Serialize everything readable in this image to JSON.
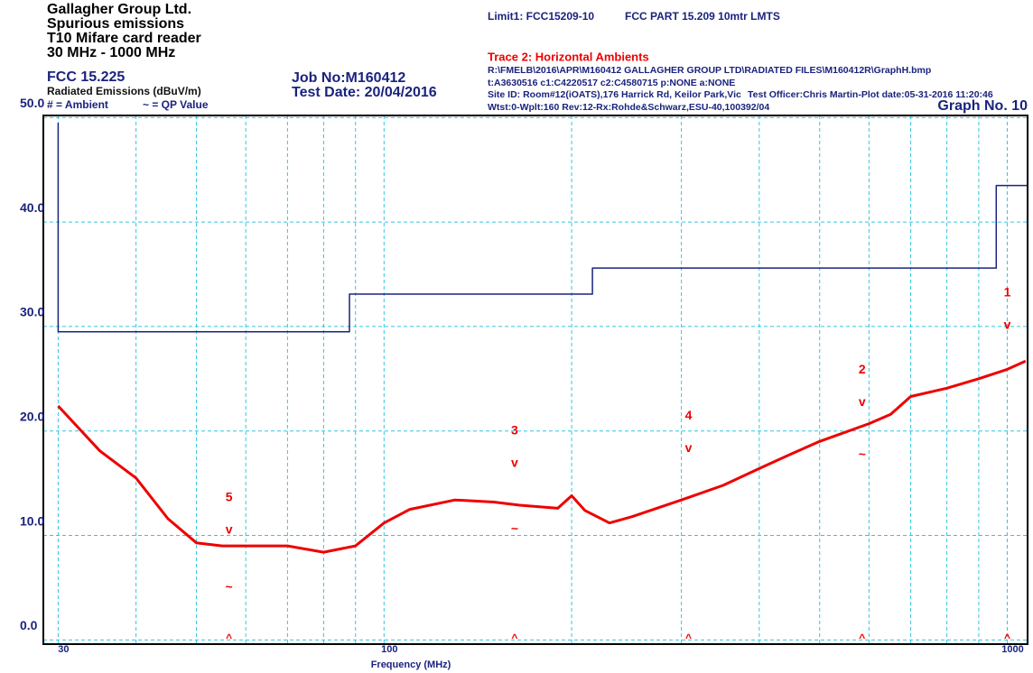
{
  "header": {
    "company": "Gallagher Group Ltd.",
    "test": "Spurious emissions",
    "product": "T10 Mifare card reader",
    "range": "30 MHz - 1000 MHz",
    "standard": "FCC 15.225",
    "ambient_key": "# = Ambient",
    "qp_key": "~ = QP Value",
    "job": "Job No:M160412",
    "date": "Test Date: 20/04/2016",
    "limit_desc": "FCC PART 15.209 10mtr LMTS",
    "file": "R:\\FMELB\\2016\\APR\\M160412 GALLAGHER GROUP LTD\\RADIATED FILES\\M160412R\\GraphH.bmp",
    "cal": "t:A3630516 c1:C4220517  c2:C4580715 p:NONE a:NONE",
    "site": "Site ID: Room#12(iOATS),176 Harrick Rd, Keilor Park,Vic",
    "officer": "Test Officer:Chris Martin-Plot date:05-31-2016 11:20:46",
    "setup": "Wtst:0-Wplt:160 Rev:12-Rx:Rohde&Schwarz,ESU-40,100392/04",
    "graph": "Graph No.  10"
  },
  "chart_data": {
    "type": "line",
    "xlabel": "Frequency (MHz)",
    "ylabel": "Radiated Emissions (dBuV/m)",
    "log_x": true,
    "xlim": [
      28.4,
      1078
    ],
    "ylim": [
      -0.4,
      50.2
    ],
    "xticks": [
      30,
      100,
      1000
    ],
    "xgrid": [
      30,
      40,
      50,
      60,
      70,
      80,
      90,
      100,
      200,
      300,
      400,
      500,
      600,
      700,
      800,
      900,
      1000
    ],
    "yticks": [
      {
        "value": 0,
        "label": "0.0"
      },
      {
        "value": 10,
        "label": "10.0"
      },
      {
        "value": 20,
        "label": "20.0"
      },
      {
        "value": 30,
        "label": "30.0"
      },
      {
        "value": 40,
        "label": "40.0"
      },
      {
        "value": 50,
        "label": "50.0"
      }
    ],
    "grid": true,
    "series": [
      {
        "name": "Limit1: FCC15209-10",
        "color": "#1a237e",
        "x": [
          30,
          30,
          88,
          88,
          216,
          216,
          960,
          960,
          1078
        ],
        "values": [
          49.5,
          29.5,
          29.5,
          33.1,
          33.1,
          35.6,
          35.6,
          43.5,
          43.5
        ]
      },
      {
        "name": "Trace 2: Horizontal Ambients",
        "color": "#ee0000",
        "x": [
          30,
          35,
          40,
          45,
          50,
          55,
          60,
          70,
          80,
          90,
          100,
          110,
          130,
          150,
          165,
          190,
          200,
          210,
          230,
          250,
          300,
          350,
          400,
          450,
          500,
          600,
          650,
          700,
          800,
          900,
          1000,
          1070
        ],
        "values": [
          22.4,
          18.1,
          15.5,
          11.6,
          9.3,
          9.0,
          9.0,
          9.0,
          8.4,
          9.0,
          11.2,
          12.5,
          13.4,
          13.2,
          12.9,
          12.6,
          13.8,
          12.4,
          11.2,
          11.8,
          13.4,
          14.8,
          16.4,
          17.8,
          19.0,
          20.7,
          21.6,
          23.3,
          24.1,
          25.0,
          25.9,
          26.7
        ]
      }
    ],
    "symbols": {
      "peak": "v",
      "qp": "~",
      "foot": "^"
    },
    "markers": [
      {
        "label": "1",
        "x": 1000,
        "peak": 30.1,
        "qp": null
      },
      {
        "label": "2",
        "x": 585,
        "peak": 22.7,
        "qp": 17.7
      },
      {
        "label": "3",
        "x": 162,
        "peak": 16.9,
        "qp": 10.6
      },
      {
        "label": "4",
        "x": 308,
        "peak": 18.3,
        "qp": null
      },
      {
        "label": "5",
        "x": 56.4,
        "peak": 10.5,
        "qp": 5.0
      }
    ]
  }
}
